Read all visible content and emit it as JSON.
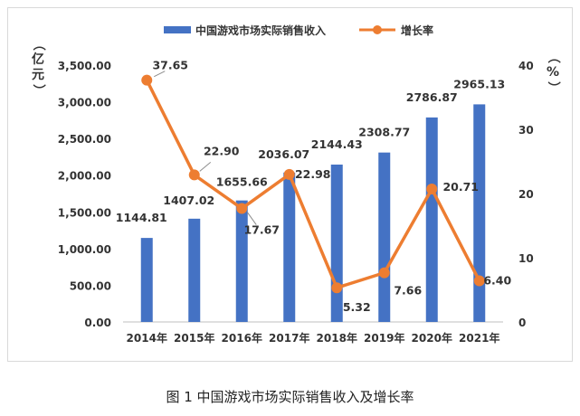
{
  "chart_data": {
    "type": "bar",
    "categories": [
      "2014年",
      "2015年",
      "2016年",
      "2017年",
      "2018年",
      "2019年",
      "2020年",
      "2021年"
    ],
    "series": [
      {
        "name": "中国游戏市场实际销售收入",
        "type": "bar",
        "axis": "left",
        "color": "#4472c4",
        "values": [
          1144.81,
          1407.02,
          1655.66,
          2036.07,
          2144.43,
          2308.77,
          2786.87,
          2965.13
        ],
        "labels": [
          "1144.81",
          "1407.02",
          "1655.66",
          "2036.07",
          "2144.43",
          "2308.77",
          "2786.87",
          "2965.13"
        ]
      },
      {
        "name": "增长率",
        "type": "line",
        "axis": "right",
        "color": "#ed7d31",
        "values": [
          37.65,
          22.9,
          17.67,
          22.98,
          5.32,
          7.66,
          20.71,
          6.4
        ],
        "labels": [
          "37.65",
          "22.90",
          "17.67",
          "22.98",
          "5.32",
          "7.66",
          "20.71",
          "6.40"
        ]
      }
    ],
    "y_left": {
      "label": "（亿元）",
      "ylim": [
        0,
        3500
      ],
      "ticks": [
        "0.00",
        "500.00",
        "1,000.00",
        "1,500.00",
        "2,000.00",
        "2,500.00",
        "3,000.00",
        "3,500.00"
      ]
    },
    "y_right": {
      "label": "（%）",
      "ylim": [
        0,
        40
      ],
      "ticks": [
        "0",
        "10",
        "20",
        "30",
        "40"
      ]
    },
    "legend_position": "top",
    "grid": false,
    "caption": "图 1 中国游戏市场实际销售收入及增长率"
  }
}
